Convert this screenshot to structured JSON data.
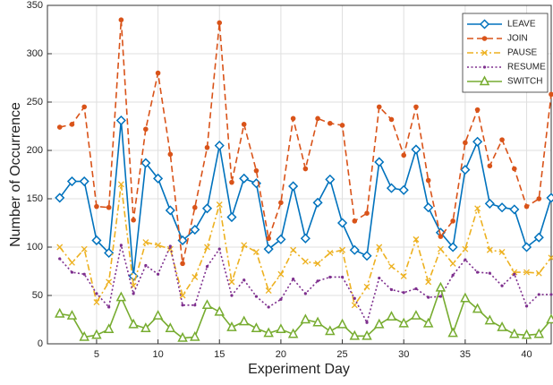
{
  "chart_data": {
    "type": "line",
    "xlabel": "Experiment Day",
    "ylabel": "Number of Occurrence",
    "x": [
      2,
      3,
      4,
      5,
      6,
      7,
      8,
      9,
      10,
      11,
      12,
      13,
      14,
      15,
      16,
      17,
      18,
      19,
      20,
      21,
      22,
      23,
      24,
      25,
      26,
      27,
      28,
      29,
      30,
      31,
      32,
      33,
      34,
      35,
      36,
      37,
      38,
      39,
      40,
      41,
      42
    ],
    "xlim": [
      1,
      42
    ],
    "xticks": [
      5,
      10,
      15,
      20,
      25,
      30,
      35,
      40
    ],
    "ylim": [
      0,
      350
    ],
    "yticks": [
      0,
      50,
      100,
      150,
      200,
      250,
      300,
      350
    ],
    "grid": true,
    "legend": "top-right",
    "series": [
      {
        "name": "LEAVE",
        "color": "#0072bd",
        "dash": "solid",
        "marker": "diamond",
        "values": [
          151,
          168,
          168,
          107,
          94,
          231,
          70,
          187,
          171,
          138,
          107,
          118,
          140,
          205,
          131,
          171,
          166,
          98,
          108,
          163,
          109,
          146,
          170,
          125,
          97,
          91,
          188,
          161,
          159,
          201,
          141,
          115,
          100,
          180,
          209,
          145,
          141,
          139,
          100,
          110,
          151
        ]
      },
      {
        "name": "JOIN",
        "color": "#d95319",
        "dash": "dashed",
        "marker": "dot",
        "values": [
          224,
          227,
          245,
          142,
          141,
          335,
          128,
          222,
          280,
          196,
          83,
          141,
          203,
          332,
          167,
          227,
          179,
          109,
          146,
          233,
          181,
          233,
          228,
          226,
          127,
          135,
          245,
          232,
          195,
          245,
          169,
          111,
          127,
          208,
          242,
          184,
          211,
          181,
          142,
          150,
          258
        ]
      },
      {
        "name": "PAUSE",
        "color": "#edb120",
        "dash": "dashdot",
        "marker": "x",
        "values": [
          100,
          84,
          98,
          43,
          64,
          165,
          60,
          105,
          102,
          98,
          50,
          69,
          100,
          144,
          64,
          102,
          95,
          55,
          72,
          97,
          85,
          83,
          94,
          97,
          40,
          59,
          100,
          80,
          70,
          108,
          64,
          98,
          83,
          98,
          140,
          97,
          95,
          74,
          74,
          73,
          89
        ]
      },
      {
        "name": "RESUME",
        "color": "#7e2f8e",
        "dash": "dotted",
        "marker": "point",
        "values": [
          88,
          74,
          72,
          52,
          38,
          102,
          52,
          81,
          72,
          101,
          40,
          40,
          80,
          98,
          50,
          66,
          49,
          38,
          46,
          67,
          52,
          65,
          69,
          69,
          47,
          22,
          68,
          56,
          53,
          57,
          48,
          49,
          71,
          87,
          74,
          73,
          60,
          72,
          39,
          51,
          51
        ]
      },
      {
        "name": "SWITCH",
        "color": "#77ac30",
        "dash": "solid",
        "marker": "triangle",
        "values": [
          31,
          29,
          7,
          9,
          15,
          48,
          20,
          16,
          29,
          16,
          6,
          7,
          40,
          33,
          17,
          23,
          16,
          11,
          15,
          10,
          25,
          22,
          13,
          20,
          8,
          8,
          20,
          28,
          21,
          29,
          21,
          58,
          11,
          47,
          36,
          24,
          17,
          10,
          9,
          10,
          25
        ]
      }
    ]
  }
}
